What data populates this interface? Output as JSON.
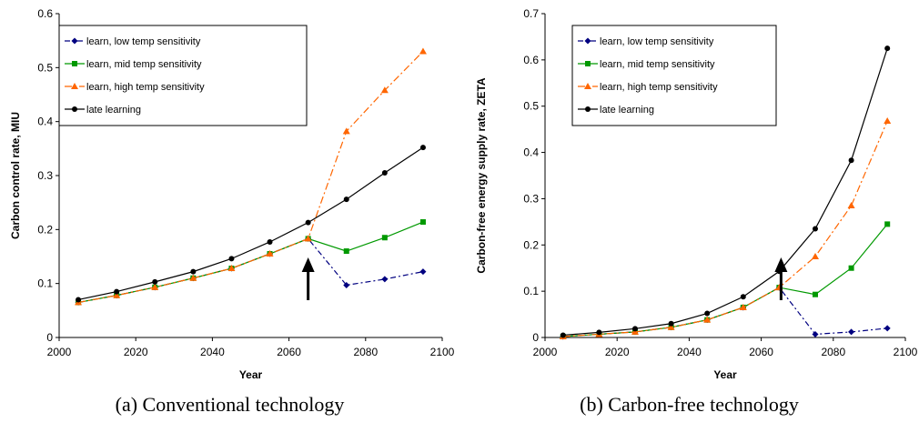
{
  "chart_data": [
    {
      "type": "line",
      "caption": "(a)  Conventional technology",
      "xlabel": "Year",
      "ylabel": "Carbon control rate, MIU",
      "xlim": [
        2000,
        2100
      ],
      "ylim": [
        0,
        0.6
      ],
      "xticks": [
        2000,
        2020,
        2040,
        2060,
        2080,
        2100
      ],
      "xtick_labels": [
        "2000",
        "2020",
        "2040",
        "2060",
        "2080",
        "2100"
      ],
      "yticks": [
        0,
        0.1,
        0.2,
        0.3,
        0.4,
        0.5,
        0.6
      ],
      "ytick_labels": [
        "0",
        "0.1",
        "0.2",
        "0.3",
        "0.4",
        "0.5",
        "0.6"
      ],
      "grid": false,
      "legend_position": "top-left",
      "arrow_x": 2065,
      "x": [
        2005,
        2015,
        2025,
        2035,
        2045,
        2055,
        2065,
        2075,
        2085,
        2095
      ],
      "series": [
        {
          "name": "learn, low temp sensitivity",
          "color": "#000080",
          "marker": "diamond",
          "dash": "6,3,2,3",
          "values": [
            0.065,
            0.078,
            0.093,
            0.11,
            0.128,
            0.155,
            0.183,
            0.097,
            0.108,
            0.122
          ]
        },
        {
          "name": "learn, mid temp sensitivity",
          "color": "#009900",
          "marker": "square",
          "dash": "",
          "values": [
            0.065,
            0.078,
            0.093,
            0.11,
            0.128,
            0.155,
            0.183,
            0.16,
            0.185,
            0.214
          ]
        },
        {
          "name": "learn, high temp sensitivity",
          "color": "#ff6600",
          "marker": "triangle",
          "dash": "8,3,2,3",
          "values": [
            0.065,
            0.078,
            0.093,
            0.11,
            0.128,
            0.155,
            0.183,
            0.382,
            0.458,
            0.53
          ]
        },
        {
          "name": "late learning",
          "color": "#000000",
          "marker": "circle",
          "dash": "",
          "values": [
            0.07,
            0.085,
            0.103,
            0.122,
            0.146,
            0.177,
            0.213,
            0.256,
            0.305,
            0.352
          ]
        }
      ]
    },
    {
      "type": "line",
      "caption": "(b)  Carbon-free technology",
      "xlabel": "Year",
      "ylabel": "Carbon-free energy supply rate, ZETA",
      "xlim": [
        2000,
        2100
      ],
      "ylim": [
        0,
        0.7
      ],
      "xticks": [
        2000,
        2020,
        2040,
        2060,
        2080,
        2100
      ],
      "xtick_labels": [
        "2000",
        "2020",
        "2040",
        "2060",
        "2080",
        "2100"
      ],
      "yticks": [
        0,
        0.1,
        0.2,
        0.3,
        0.4,
        0.5,
        0.6,
        0.7
      ],
      "ytick_labels": [
        "0",
        "0.1",
        "0.2",
        "0.3",
        "0.4",
        "0.5",
        "0.6",
        "0.7"
      ],
      "grid": false,
      "legend_position": "top-left",
      "arrow_x": 2065.5,
      "x": [
        2005,
        2015,
        2025,
        2035,
        2045,
        2055,
        2065,
        2075,
        2085,
        2095
      ],
      "series": [
        {
          "name": "learn, low temp sensitivity",
          "color": "#000080",
          "marker": "diamond",
          "dash": "6,3,2,3",
          "values": [
            0.002,
            0.007,
            0.012,
            0.022,
            0.038,
            0.065,
            0.108,
            0.007,
            0.012,
            0.02
          ]
        },
        {
          "name": "learn, mid temp sensitivity",
          "color": "#009900",
          "marker": "square",
          "dash": "",
          "values": [
            0.002,
            0.007,
            0.012,
            0.022,
            0.038,
            0.065,
            0.108,
            0.093,
            0.15,
            0.245
          ]
        },
        {
          "name": "learn, high temp sensitivity",
          "color": "#ff6600",
          "marker": "triangle",
          "dash": "8,3,2,3",
          "values": [
            0.002,
            0.007,
            0.012,
            0.022,
            0.038,
            0.065,
            0.108,
            0.175,
            0.285,
            0.468
          ]
        },
        {
          "name": "late learning",
          "color": "#000000",
          "marker": "circle",
          "dash": "",
          "values": [
            0.005,
            0.011,
            0.019,
            0.03,
            0.052,
            0.088,
            0.143,
            0.235,
            0.383,
            0.625
          ]
        }
      ]
    }
  ]
}
